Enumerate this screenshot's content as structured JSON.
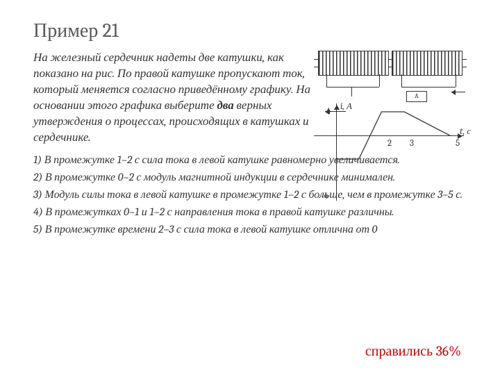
{
  "title": "Пример 21",
  "problem": {
    "text_pre": "На железный сердечник надеты две катушки, как показано на рис.  По правой катушке пропускают ток, который меняется согласно приведённому графику. На основании этого графика выберите ",
    "bold": "два",
    "text_post": " верных утверждения о процессах, происходящих в катушках и сердечнике."
  },
  "options": {
    "o1": "1) В промежутке 1–2 с сила тока в левой катушке равномерно увеличивается.",
    "o2": "2) В промежутке 0–2 с модуль магнитной индукции в сердечнике минимален.",
    "o3": "3) Модуль силы тока в левой катушке в промежутке 1–2 с больше, чем в промежутке 3–5 с.",
    "o4": "4) В промежутках 0–1 и 1–2 с направления тока в правой катушке различны.",
    "o5": "5) В промежутке времени 2–3 с сила тока в левой катушке отлична от 0"
  },
  "circuit": {
    "meter_label": "A"
  },
  "graph": {
    "type": "line",
    "y_axis_label": "i, А",
    "x_axis_label": "t, с",
    "y_tick_pos": "4",
    "y_tick_neg": "-4",
    "x_ticks": {
      "t2": "2",
      "t3": "3",
      "t5": "5"
    },
    "axis_color": "#333333",
    "line_stroke": "#333333",
    "line_width": 1.3,
    "xlim": [
      0,
      5.5
    ],
    "ylim": [
      -4.5,
      4.5
    ],
    "points": [
      {
        "t": 0,
        "i": -4
      },
      {
        "t": 1,
        "i": -4
      },
      {
        "t": 2,
        "i": 4
      },
      {
        "t": 3,
        "i": 4
      },
      {
        "t": 5,
        "i": 0
      }
    ]
  },
  "result": "справились 36%"
}
